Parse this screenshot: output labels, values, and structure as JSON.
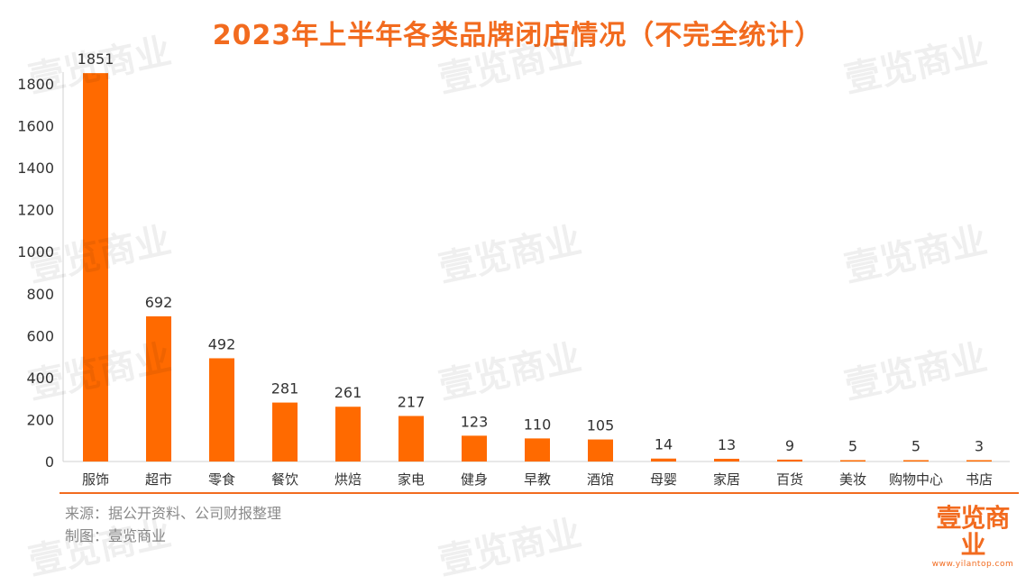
{
  "title": "2023年上半年各类品牌闭店情况（不完全统计）",
  "source_line": "来源：据公开资料、公司财报整理",
  "credit_line": "制图：壹览商业",
  "brand": {
    "name": "壹览商业",
    "url": "www.yilantop.com"
  },
  "watermark_text": "壹览商业",
  "colors": {
    "accent": "#F26B1F",
    "bar": "#FF6A00",
    "axis": "#333333",
    "note": "#8a8a8a"
  },
  "chart_data": {
    "type": "bar",
    "title": "2023年上半年各类品牌闭店情况（不完全统计）",
    "xlabel": "",
    "ylabel": "",
    "categories": [
      "服饰",
      "超市",
      "零食",
      "餐饮",
      "烘焙",
      "家电",
      "健身",
      "早教",
      "酒馆",
      "母婴",
      "家居",
      "百货",
      "美妆",
      "购物中心",
      "书店"
    ],
    "values": [
      1851,
      692,
      492,
      281,
      261,
      217,
      123,
      110,
      105,
      14,
      13,
      9,
      5,
      5,
      3
    ],
    "ylim": [
      0,
      1800
    ],
    "yticks": [
      0,
      200,
      400,
      600,
      800,
      1000,
      1200,
      1400,
      1600,
      1800
    ],
    "ytick_labels": [
      "0",
      "200",
      "400",
      "600",
      "800",
      "1000",
      "1200",
      "1400",
      "1600",
      "1800"
    ],
    "grid": false,
    "legend": "none",
    "data_labels": true
  }
}
